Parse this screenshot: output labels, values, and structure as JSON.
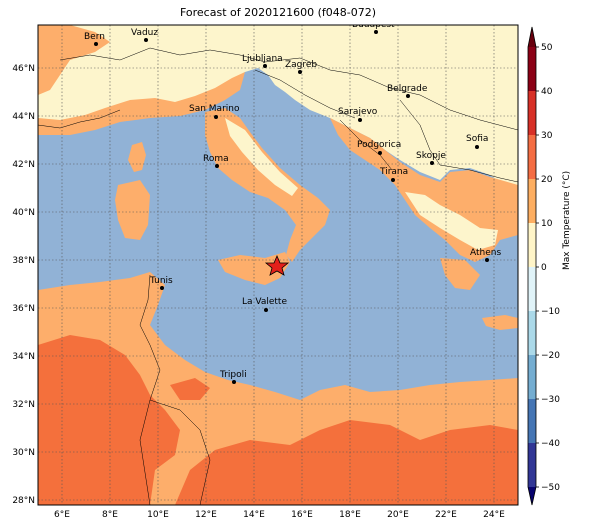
{
  "title": "Forecast of 2020121600 (f048-072)",
  "colorbar": {
    "label": "Max Temperature (°C)",
    "ticks": [
      "50",
      "40",
      "30",
      "20",
      "10",
      "0",
      "−10",
      "−20",
      "−30",
      "−40",
      "−50"
    ],
    "colors": [
      "#8b0015",
      "#b8002a",
      "#d73027",
      "#f46d43",
      "#fdae61",
      "#fff5c8",
      "#e0f3f8",
      "#abd9e9",
      "#74add1",
      "#4575b4",
      "#313695"
    ],
    "dark_end": "#08036e"
  },
  "map_colors": {
    "sea": "#91b2d6",
    "warm": "#fdae6b",
    "hot": "#f4703c",
    "mild": "#fdf5cc"
  },
  "axes": {
    "lon_labels": [
      "6°E",
      "8°E",
      "10°E",
      "12°E",
      "14°E",
      "16°E",
      "18°E",
      "20°E",
      "22°E",
      "24°E"
    ],
    "lat_labels": [
      "46°N",
      "44°N",
      "42°N",
      "40°N",
      "38°N",
      "36°N",
      "34°N",
      "32°N",
      "30°N",
      "28°N"
    ]
  },
  "cities": [
    {
      "name": "Bern"
    },
    {
      "name": "Vaduz"
    },
    {
      "name": "Budapest"
    },
    {
      "name": "Ljubljana"
    },
    {
      "name": "Zagreb"
    },
    {
      "name": "Belgrade"
    },
    {
      "name": "San Marino"
    },
    {
      "name": "Sarajevo"
    },
    {
      "name": "Sofia"
    },
    {
      "name": "Podgorica"
    },
    {
      "name": "Skopje"
    },
    {
      "name": "Roma"
    },
    {
      "name": "Tirana"
    },
    {
      "name": "Athens"
    },
    {
      "name": "Tunis"
    },
    {
      "name": "La Valette"
    },
    {
      "name": "Tripoli"
    }
  ],
  "marker": {
    "name": "star-marker",
    "color": "#e3201a"
  }
}
